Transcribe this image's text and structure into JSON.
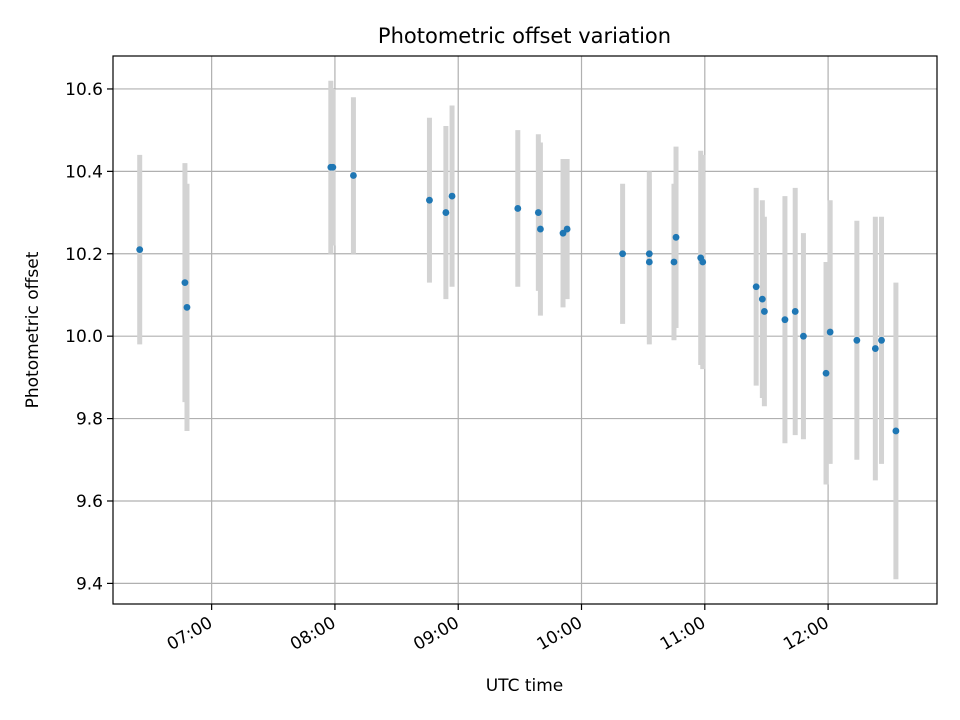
{
  "chart_data": {
    "type": "scatter",
    "title": "Photometric offset variation",
    "xlabel": "UTC time",
    "ylabel": "Photometric offset",
    "x_ticks": [
      "07:00",
      "08:00",
      "09:00",
      "10:00",
      "11:00",
      "12:00"
    ],
    "y_ticks": [
      "9.4",
      "9.6",
      "9.8",
      "10.0",
      "10.2",
      "10.4",
      "10.6"
    ],
    "xlim": [
      "06:12",
      "12:53"
    ],
    "ylim": [
      9.35,
      10.68
    ],
    "grid": true,
    "colors": {
      "points": "#1f77b4",
      "errorbars": "#d3d3d3",
      "grid": "#b0b0b0"
    },
    "points": [
      {
        "x": "06:25",
        "y": 10.21,
        "err": 0.23
      },
      {
        "x": "06:47",
        "y": 10.13,
        "err": 0.29
      },
      {
        "x": "06:48",
        "y": 10.07,
        "err": 0.3
      },
      {
        "x": "07:58",
        "y": 10.41,
        "err": 0.21
      },
      {
        "x": "07:59",
        "y": 10.41,
        "err": 0.19
      },
      {
        "x": "08:09",
        "y": 10.39,
        "err": 0.19
      },
      {
        "x": "08:46",
        "y": 10.33,
        "err": 0.2
      },
      {
        "x": "08:54",
        "y": 10.3,
        "err": 0.21
      },
      {
        "x": "08:57",
        "y": 10.34,
        "err": 0.22
      },
      {
        "x": "09:29",
        "y": 10.31,
        "err": 0.19
      },
      {
        "x": "09:39",
        "y": 10.3,
        "err": 0.19
      },
      {
        "x": "09:40",
        "y": 10.26,
        "err": 0.21
      },
      {
        "x": "09:51",
        "y": 10.25,
        "err": 0.18
      },
      {
        "x": "09:53",
        "y": 10.26,
        "err": 0.17
      },
      {
        "x": "10:20",
        "y": 10.2,
        "err": 0.17
      },
      {
        "x": "10:33",
        "y": 10.2,
        "err": 0.2
      },
      {
        "x": "10:33",
        "y": 10.18,
        "err": 0.2
      },
      {
        "x": "10:45",
        "y": 10.18,
        "err": 0.19
      },
      {
        "x": "10:46",
        "y": 10.24,
        "err": 0.22
      },
      {
        "x": "10:58",
        "y": 10.19,
        "err": 0.26
      },
      {
        "x": "10:59",
        "y": 10.18,
        "err": 0.26
      },
      {
        "x": "11:25",
        "y": 10.12,
        "err": 0.24
      },
      {
        "x": "11:28",
        "y": 10.09,
        "err": 0.24
      },
      {
        "x": "11:29",
        "y": 10.06,
        "err": 0.23
      },
      {
        "x": "11:39",
        "y": 10.04,
        "err": 0.3
      },
      {
        "x": "11:44",
        "y": 10.06,
        "err": 0.3
      },
      {
        "x": "11:48",
        "y": 10.0,
        "err": 0.25
      },
      {
        "x": "11:59",
        "y": 9.91,
        "err": 0.27
      },
      {
        "x": "12:01",
        "y": 10.01,
        "err": 0.32
      },
      {
        "x": "12:14",
        "y": 9.99,
        "err": 0.29
      },
      {
        "x": "12:23",
        "y": 9.97,
        "err": 0.32
      },
      {
        "x": "12:26",
        "y": 9.99,
        "err": 0.3
      },
      {
        "x": "12:33",
        "y": 9.77,
        "err": 0.36
      }
    ]
  }
}
